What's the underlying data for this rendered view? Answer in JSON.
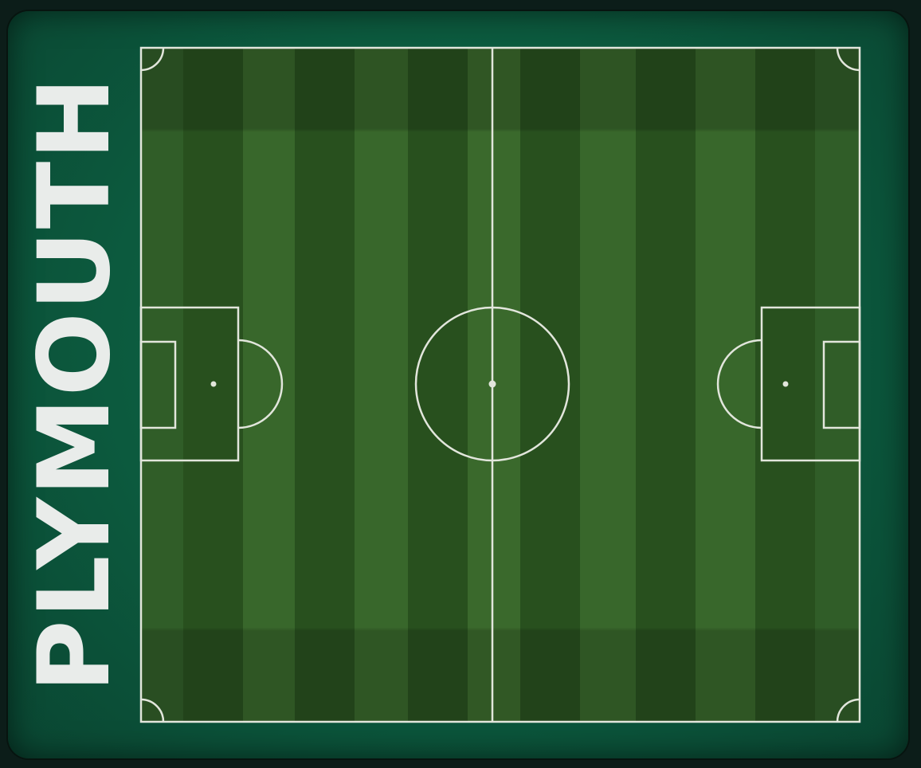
{
  "team": {
    "name": "PLYMOUTH"
  },
  "colors": {
    "frame": "#0c5a3e",
    "grass_light": "#3a6a2a",
    "grass_dark": "#2a5420",
    "lines": "#e2e6dc",
    "text": "#e9ecea"
  }
}
